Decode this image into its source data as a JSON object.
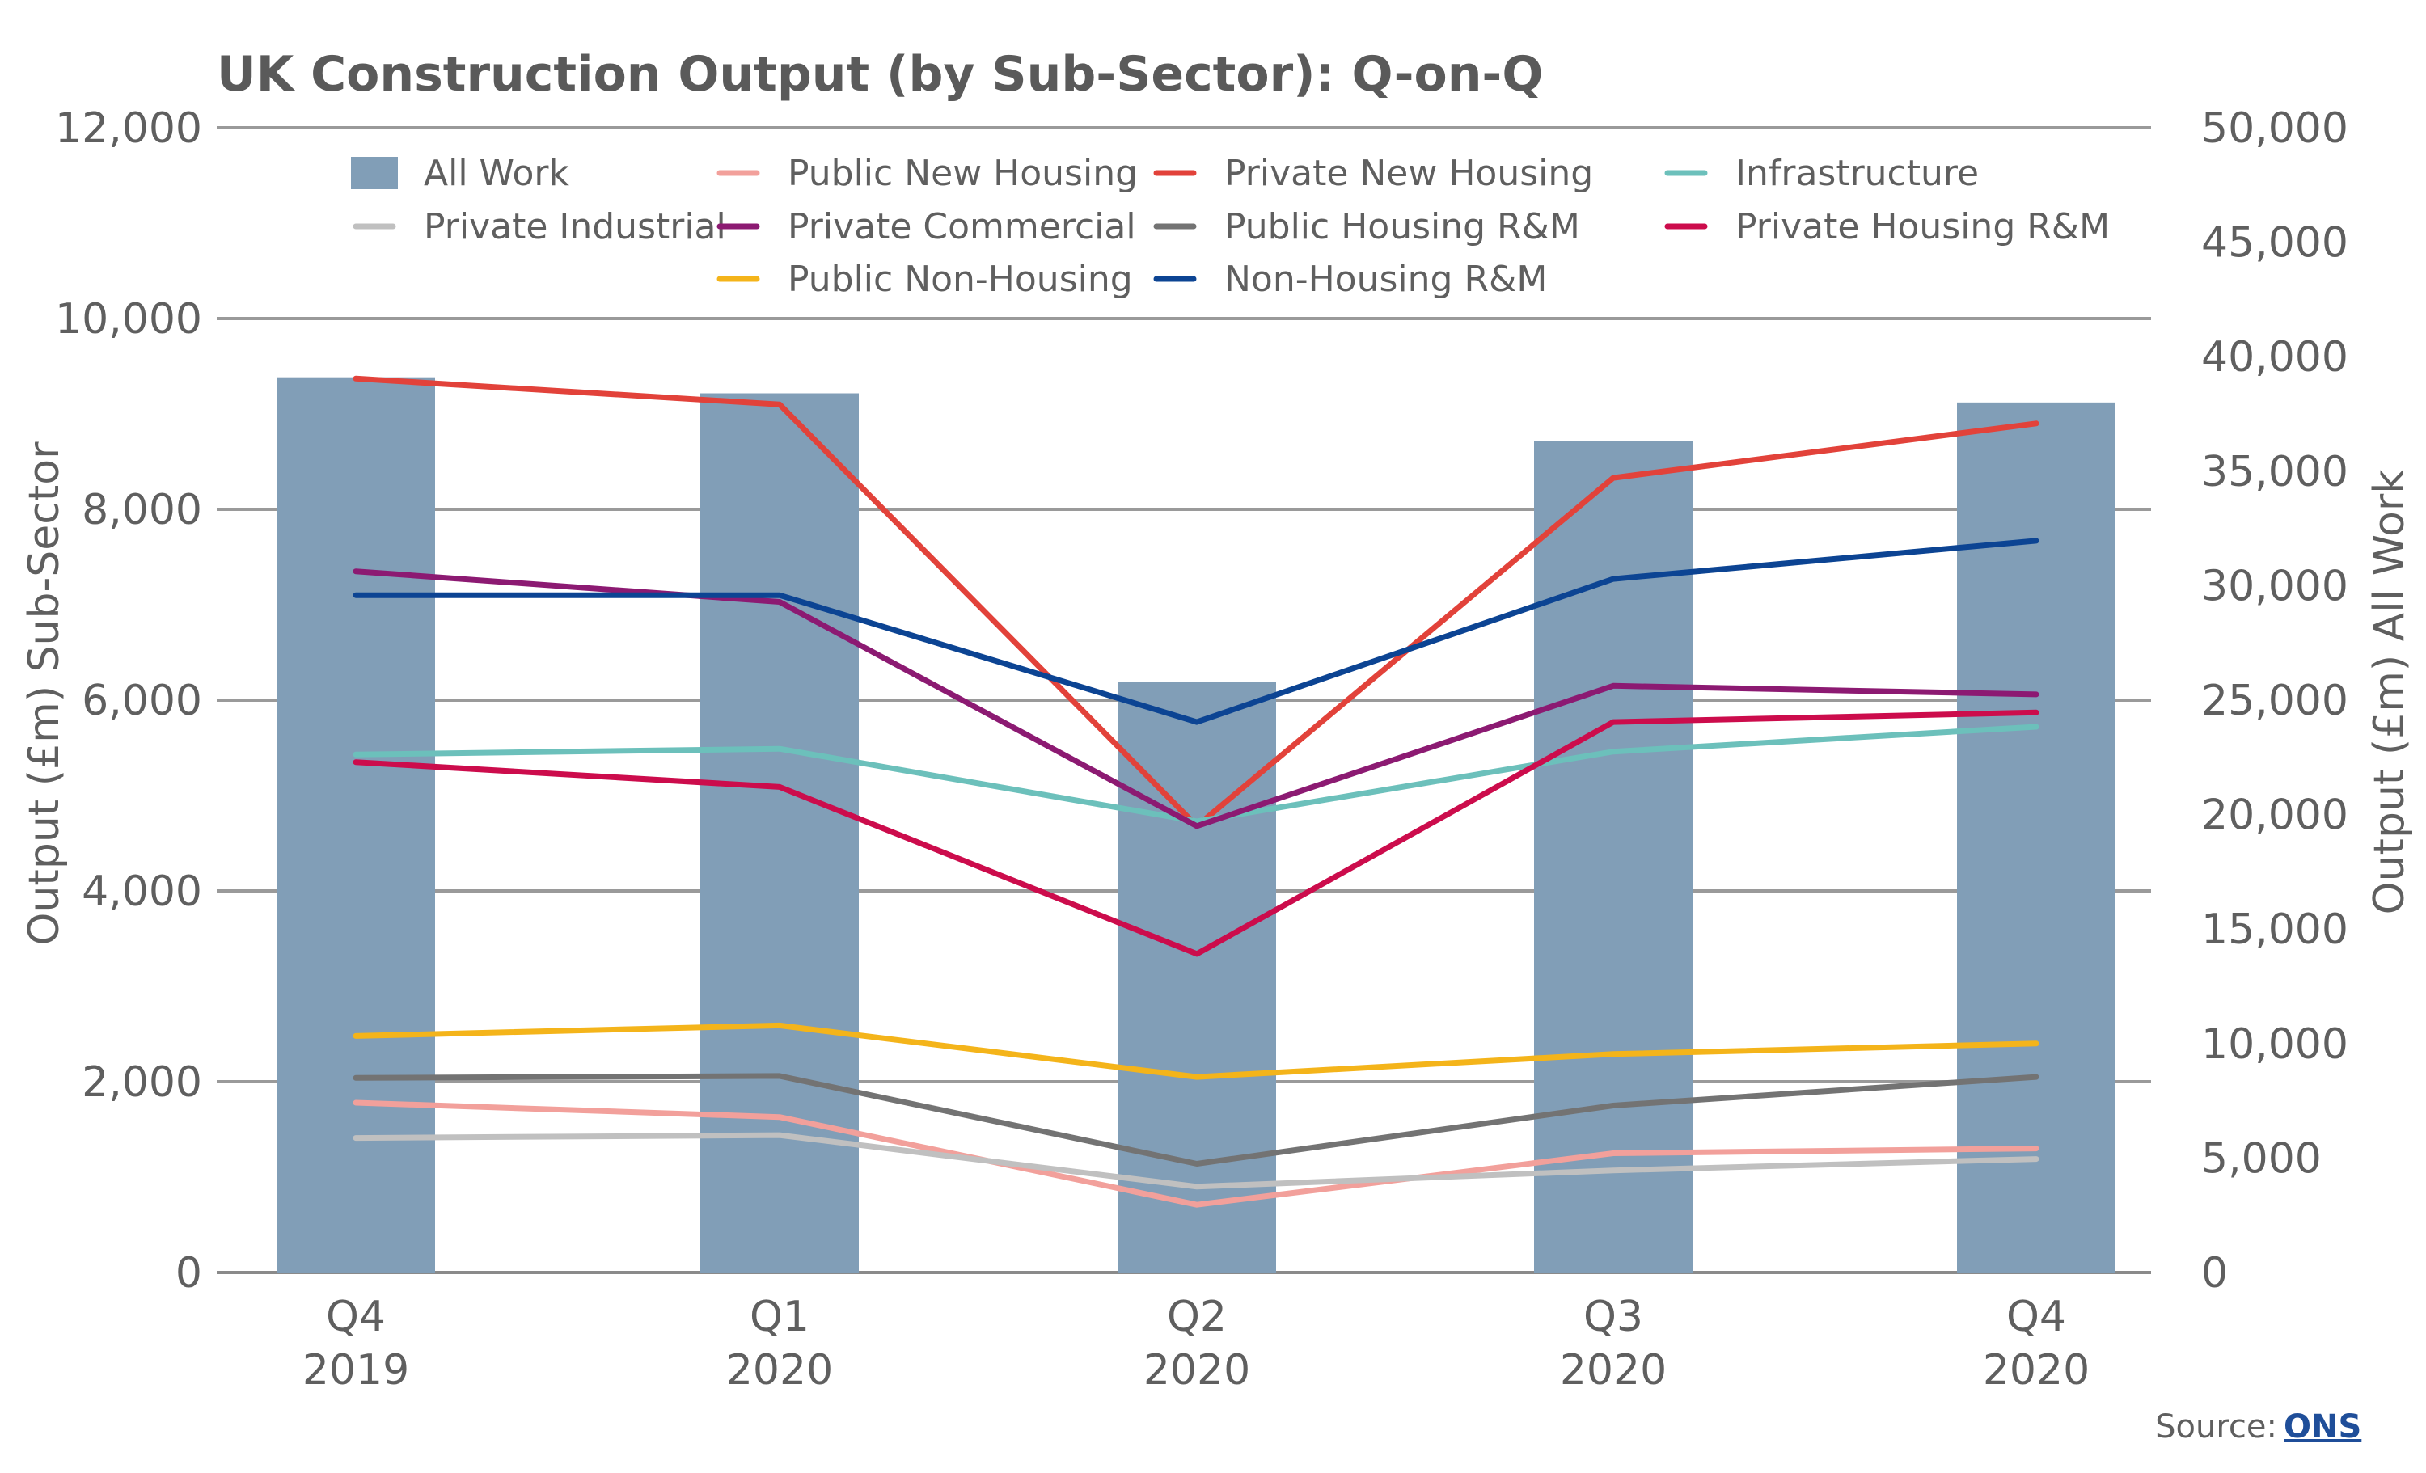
{
  "chart_data": {
    "type": "bar+line",
    "title": "UK Construction Output (by Sub-Sector): Q-on-Q",
    "ylabel_left": "Output (£m) Sub-Sector",
    "ylabel_right": "Output (£m) All Work",
    "categories": [
      [
        "Q4",
        "2019"
      ],
      [
        "Q1",
        "2020"
      ],
      [
        "Q2",
        "2020"
      ],
      [
        "Q3",
        "2020"
      ],
      [
        "Q4",
        "2020"
      ]
    ],
    "y_left": {
      "min": 0,
      "max": 12000,
      "ticks": [
        "0",
        "2,000",
        "4,000",
        "6,000",
        "8,000",
        "10,000",
        "12,000"
      ],
      "tick_values": [
        0,
        2000,
        4000,
        6000,
        8000,
        10000,
        12000
      ]
    },
    "y_right": {
      "min": 0,
      "max": 50000,
      "ticks": [
        "0",
        "5,000",
        "10,000",
        "15,000",
        "20,000",
        "25,000",
        "30,000",
        "35,000",
        "40,000",
        "45,000",
        "50,000"
      ],
      "tick_values": [
        0,
        5000,
        10000,
        15000,
        20000,
        25000,
        30000,
        35000,
        40000,
        45000,
        50000
      ]
    },
    "grid": true,
    "legend_position": "top",
    "bar_series": {
      "name": "All Work",
      "axis": "right",
      "color": "#819eb7",
      "values": [
        39100,
        38400,
        25800,
        36300,
        38000
      ]
    },
    "line_series": [
      {
        "name": "Public New Housing",
        "color": "#f2a09b",
        "values": [
          1780,
          1630,
          710,
          1250,
          1300
        ]
      },
      {
        "name": "Private New Housing",
        "color": "#e2423a",
        "values": [
          9370,
          9100,
          4680,
          8330,
          8900
        ]
      },
      {
        "name": "Infrastructure",
        "color": "#6cc0bb",
        "values": [
          5430,
          5490,
          4730,
          5460,
          5720
        ]
      },
      {
        "name": "Private Industrial",
        "color": "#c0c0c0",
        "values": [
          1410,
          1440,
          900,
          1070,
          1190
        ]
      },
      {
        "name": "Private Commercial",
        "color": "#8c1a72",
        "values": [
          7350,
          7030,
          4680,
          6150,
          6060
        ]
      },
      {
        "name": "Public Housing R&M",
        "color": "#737373",
        "values": [
          2040,
          2060,
          1140,
          1750,
          2050
        ]
      },
      {
        "name": "Private Housing R&M",
        "color": "#cc0c4c",
        "values": [
          5350,
          5090,
          3340,
          5770,
          5870
        ]
      },
      {
        "name": "Public Non-Housing",
        "color": "#f4b41a",
        "values": [
          2480,
          2590,
          2050,
          2290,
          2400
        ]
      },
      {
        "name": "Non-Housing R&M",
        "color": "#0c4493",
        "values": [
          7100,
          7100,
          5770,
          7270,
          7670
        ]
      }
    ]
  },
  "source": {
    "label": "Source:",
    "link_text": "ONS"
  }
}
